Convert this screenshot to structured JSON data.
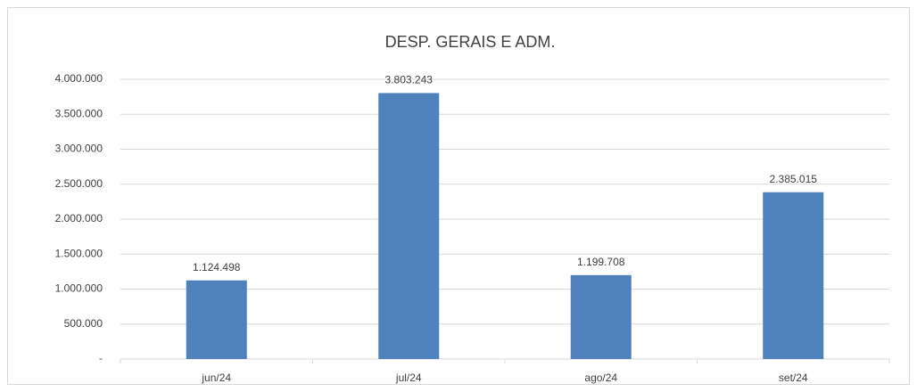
{
  "chart_data": {
    "type": "bar",
    "title": "DESP. GERAIS E ADM.",
    "categories": [
      "jun/24",
      "jul/24",
      "ago/24",
      "set/24"
    ],
    "values": [
      1124498,
      3803243,
      1199708,
      2385015
    ],
    "value_labels": [
      "1.124.498",
      "3.803.243",
      "1.199.708",
      "2.385.015"
    ],
    "color": "#4f81bd",
    "ylim": [
      0,
      4000000
    ],
    "yticks": [
      {
        "value": 0,
        "label": "-"
      },
      {
        "value": 500000,
        "label": "500.000"
      },
      {
        "value": 1000000,
        "label": "1.000.000"
      },
      {
        "value": 1500000,
        "label": "1.500.000"
      },
      {
        "value": 2000000,
        "label": "2.000.000"
      },
      {
        "value": 2500000,
        "label": "2.500.000"
      },
      {
        "value": 3000000,
        "label": "3.000.000"
      },
      {
        "value": 3500000,
        "label": "3.500.000"
      },
      {
        "value": 4000000,
        "label": "4.000.000"
      }
    ],
    "grid": true
  }
}
